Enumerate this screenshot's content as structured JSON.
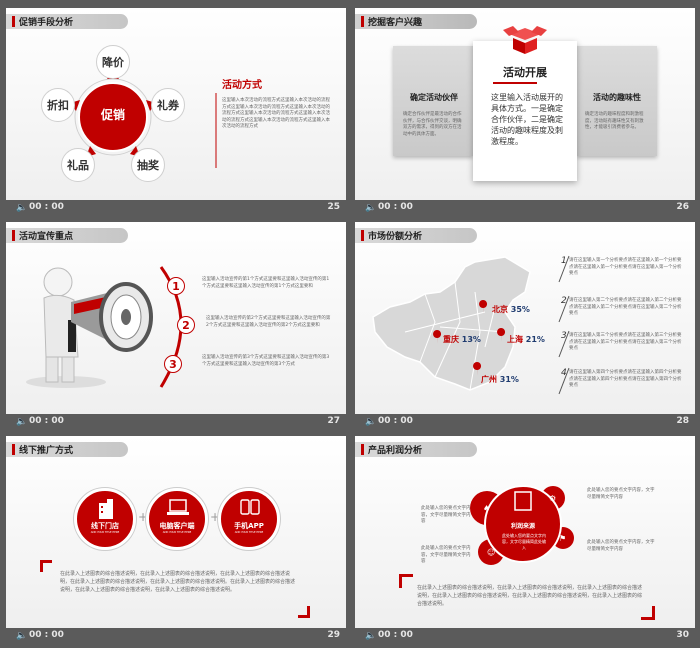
{
  "footer_time": "00 : 00",
  "slides": [
    {
      "number": "25",
      "title": "促销手段分析",
      "center": "促销",
      "items": [
        "降价",
        "礼券",
        "抽奖",
        "礼品",
        "折扣"
      ],
      "heading": "活动方式",
      "body": "这里输入本次活动的流程方式这里输入本次活动的流程方式这里输入本次活动的流程方式这里输入本次活动的流程方式这里输入本次活动的流程方式这里输入本次活动的流程方式这里输入本次活动的流程方式这里输入本次活动的流程方式"
    },
    {
      "number": "26",
      "title": "挖掘客户兴趣",
      "left_title": "确定活动伙伴",
      "left_body": "确定合作伙伴是最活动的合作伙伴，与合作伙伴交谈，明确双方的需求，得到的双方在活动中的具体方面。",
      "center_title": "活动开展",
      "center_body": "这里输入活动展开的具体方式。一是确定合作伙伴，二是确定活动的趣味程度及刺激程度。",
      "right_title": "活动的趣味性",
      "right_body": "确定活动的趣味程度和刺激程度，活动既有趣味性又有刺激性，才能吸引消费者参与。"
    },
    {
      "number": "27",
      "title": "活动宣传重点",
      "items": [
        {
          "n": "1",
          "text": "这里输入活动宣传的第1个方式这里要和这里输入活动宣传的第1个方式这里要和这里输入活动宣传的第1个方式这里要和"
        },
        {
          "n": "2",
          "text": "这里输入活动宣传的第2个方式这里要和这里输入活动宣传的第2个方式这里要和这里输入活动宣传的第2个方式这里要和"
        },
        {
          "n": "3",
          "text": "这里输入活动宣传的第3个方式这里要和这里输入活动宣传的第3个方式这里要和这里输入活动宣传的第3个方式"
        }
      ]
    },
    {
      "number": "28",
      "title": "市场份额分析",
      "cities": [
        {
          "name": "北京",
          "value": "35%"
        },
        {
          "name": "重庆",
          "value": "13%"
        },
        {
          "name": "上海",
          "value": "21%"
        },
        {
          "name": "广州",
          "value": "31%"
        }
      ],
      "notes": [
        {
          "n": "1",
          "text": "请在这里输入第一个分析要点请在这里输入第一个分析要点请在这里输入第一个分析要点请在这里输入第一个分析要点"
        },
        {
          "n": "2",
          "text": "请在这里输入第二个分析要点请在这里输入第二个分析要点请在这里输入第二个分析要点请在这里输入第二个分析要点"
        },
        {
          "n": "3",
          "text": "请在这里输入第三个分析要点请在这里输入第三个分析要点请在这里输入第三个分析要点请在这里输入第三个分析要点"
        },
        {
          "n": "4",
          "text": "请在这里输入第四个分析要点请在这里输入第四个分析要点请在这里输入第四个分析要点请在这里输入第四个分析要点"
        }
      ]
    },
    {
      "number": "29",
      "title": "线下推广方式",
      "items": [
        {
          "label": "线下门店",
          "sub": "ADD YOUR TITLE HERE"
        },
        {
          "label": "电脑客户端",
          "sub": "ADD YOUR TITLE HERE"
        },
        {
          "label": "手机APP",
          "sub": "ADD YOUR TITLE HERE"
        }
      ],
      "body": "在此录入上述图表的综合描述说明，在此录入上述图表的综合描述说明，在此录入上述图表的综合描述说明，在此录入上述图表的综合描述说明，在此录入上述图表的综合描述说明。在此录入上述图表的综合描述说明，在此录入上述图表的综合描述说明，在此录入上述图表的综合描述说明。"
    },
    {
      "number": "30",
      "title": "产品利润分析",
      "center_label": "利润来源",
      "center_text": "此处输入您的要点文字内容，文字尽量精简此处输入",
      "notes": [
        "此处输入您的要点文字内容，文字尽量精简文字内容",
        "此处输入您的要点文字内容，文字尽量精简文字内容",
        "此处输入您的要点文字内容，文字尽量精简文字内容",
        "此处输入您的要点文字内容，文字尽量精简文字内容"
      ],
      "body": "在此录入上述图表的综合描述说明，在此录入上述图表的综合描述说明，在此录入上述图表的综合描述说明，在此录入上述图表的综合描述说明，在此录入上述图表的综合描述说明，在此录入上述图表的综合描述说明。"
    }
  ]
}
